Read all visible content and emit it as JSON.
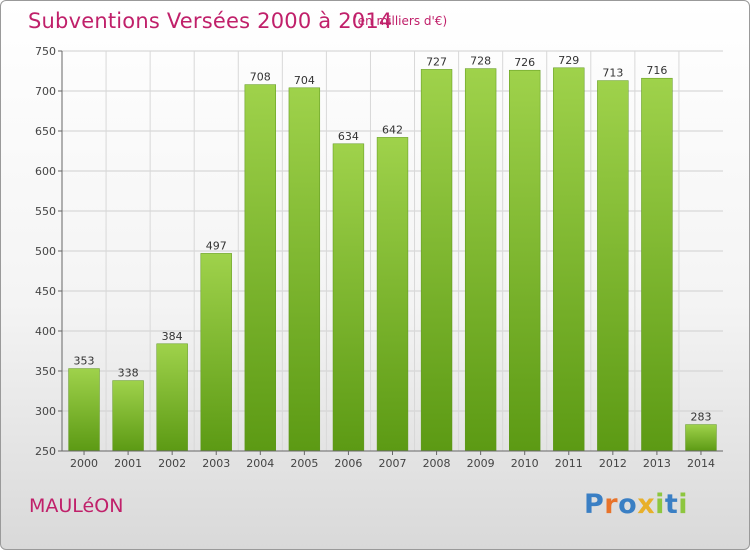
{
  "header": {
    "title": "Subventions Versées 2000 à 2014",
    "subtitle": "(en milliers d'€)"
  },
  "footer": {
    "commune": "MAULéON",
    "logo": {
      "letters": [
        "P",
        "r",
        "o",
        "x",
        "i",
        "t",
        "i"
      ],
      "colors": [
        "#3a7fc4",
        "#e8732a",
        "#3a7fc4",
        "#e8b02a",
        "#8dc63f",
        "#3a7fc4",
        "#8dc63f"
      ]
    }
  },
  "chart_data": {
    "type": "bar",
    "categories": [
      "2000",
      "2001",
      "2002",
      "2003",
      "2004",
      "2005",
      "2006",
      "2007",
      "2008",
      "2009",
      "2010",
      "2011",
      "2012",
      "2013",
      "2014"
    ],
    "values": [
      353,
      338,
      384,
      497,
      708,
      704,
      634,
      642,
      727,
      728,
      726,
      729,
      713,
      716,
      283
    ],
    "data_labels": [
      "353",
      "338",
      "384",
      "497",
      "708",
      "704",
      "634",
      "642",
      "727",
      "728",
      "726",
      "729",
      "713",
      "716",
      "283"
    ],
    "ylim": [
      250,
      750
    ],
    "yticks": [
      250,
      300,
      350,
      400,
      450,
      500,
      550,
      600,
      650,
      700,
      750
    ],
    "grid": true,
    "bar_color_top": "#9fd24b",
    "bar_color_bottom": "#5c9a14",
    "xlabel": "",
    "ylabel": ""
  }
}
